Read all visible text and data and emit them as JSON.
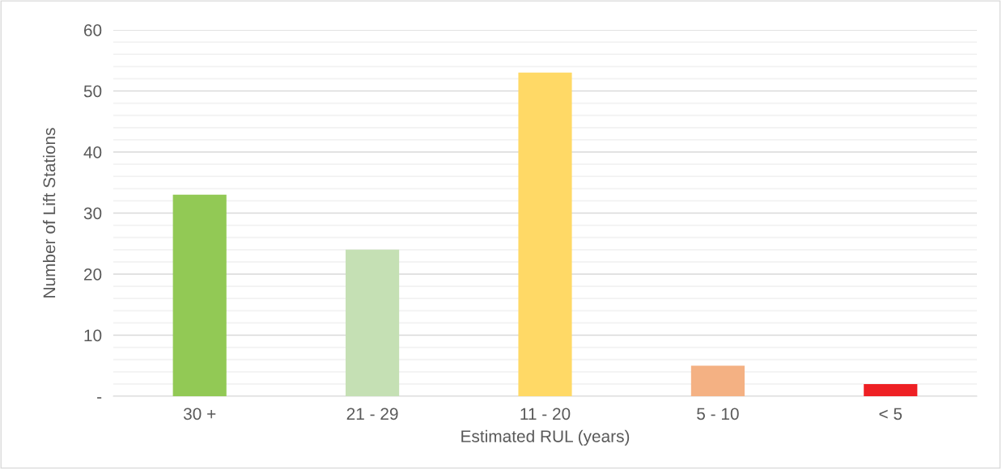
{
  "chart_data": {
    "type": "bar",
    "categories": [
      "30 +",
      "21 - 29",
      "11 - 20",
      "5 - 10",
      "< 5"
    ],
    "values": [
      33,
      24,
      53,
      5,
      2
    ],
    "colors": [
      "#92c955",
      "#c5e0b4",
      "#ffd966",
      "#f4b183",
      "#ee2024"
    ],
    "xlabel": "Estimated RUL (years)",
    "ylabel": "Number of Lift Stations",
    "ylim": [
      0,
      60
    ],
    "yticks": [
      {
        "value": 0,
        "label": "-"
      },
      {
        "value": 2,
        "label": null
      },
      {
        "value": 4,
        "label": null
      },
      {
        "value": 6,
        "label": null
      },
      {
        "value": 8,
        "label": null
      },
      10,
      {
        "value": 12,
        "label": null
      },
      {
        "value": 14,
        "label": null
      },
      {
        "value": 16,
        "label": null
      },
      {
        "value": 18,
        "label": null
      },
      20,
      {
        "value": 22,
        "label": null
      },
      {
        "value": 24,
        "label": null
      },
      {
        "value": 26,
        "label": null
      },
      {
        "value": 28,
        "label": null
      },
      30,
      {
        "value": 32,
        "label": null
      },
      {
        "value": 34,
        "label": null
      },
      {
        "value": 36,
        "label": null
      },
      {
        "value": 38,
        "label": null
      },
      40,
      {
        "value": 42,
        "label": null
      },
      {
        "value": 44,
        "label": null
      },
      {
        "value": 46,
        "label": null
      },
      {
        "value": 48,
        "label": null
      },
      50,
      {
        "value": 52,
        "label": null
      },
      {
        "value": 54,
        "label": null
      },
      {
        "value": 56,
        "label": null
      },
      {
        "value": 58,
        "label": null
      },
      60
    ],
    "grid": "y",
    "legend": false
  }
}
